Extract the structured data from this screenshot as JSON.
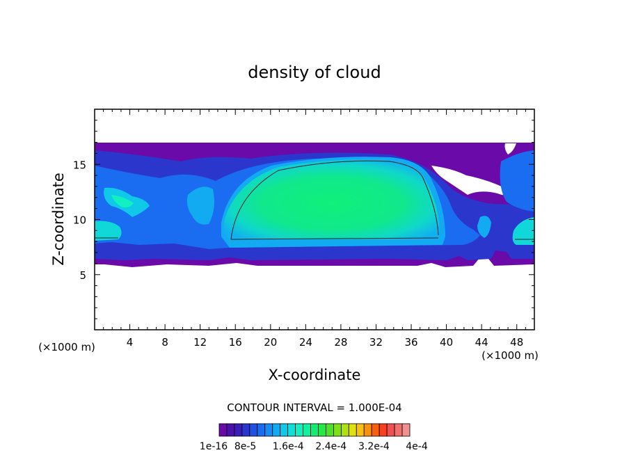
{
  "chart_data": {
    "type": "heatmap",
    "title": "density of cloud",
    "xlabel": "X-coordinate",
    "ylabel": "Z-coordinate",
    "x_unit": "(×1000 m)",
    "z_unit": "(×1000 m)",
    "xlim": [
      0,
      50
    ],
    "ylim": [
      0,
      20
    ],
    "x_ticks": [
      4,
      8,
      12,
      16,
      20,
      24,
      28,
      32,
      36,
      40,
      44,
      48
    ],
    "y_ticks": [
      5,
      10,
      15
    ],
    "contour_interval_text": "CONTOUR INTERVAL = 1.000E-04",
    "colorbar": {
      "min": 1e-16,
      "max": 0.0004,
      "tick_labels": [
        "1e-16",
        "8e-5",
        "1.6e-4",
        "2.4e-4",
        "3.2e-4",
        "4e-4"
      ],
      "colors": [
        "#6a0aa8",
        "#4a12a8",
        "#3a1dbb",
        "#2a36cc",
        "#2050e0",
        "#1a6cf0",
        "#188cf5",
        "#12aaf0",
        "#10c8e8",
        "#10e0d8",
        "#10f0c0",
        "#10f0a0",
        "#10ec78",
        "#28e848",
        "#50e028",
        "#80e018",
        "#b0e010",
        "#e0e010",
        "#f8c010",
        "#f89010",
        "#f86010",
        "#f84020",
        "#f05050",
        "#f07070",
        "#f09090"
      ]
    },
    "regions": [
      {
        "name": "cloud-layer-envelope",
        "x_range": [
          0,
          50
        ],
        "z_range": [
          6,
          17
        ],
        "approx_value": 1e-05
      },
      {
        "name": "central-dense-core",
        "x_range": [
          15,
          39
        ],
        "z_range": [
          8,
          15.5
        ],
        "approx_value": 0.00015
      },
      {
        "name": "left-edge-cell",
        "x_range": [
          0,
          3
        ],
        "z_range": [
          8,
          10
        ],
        "approx_value": 0.0001
      },
      {
        "name": "right-edge-cell",
        "x_range": [
          47,
          50
        ],
        "z_range": [
          7.5,
          10
        ],
        "approx_value": 0.0001
      }
    ]
  }
}
